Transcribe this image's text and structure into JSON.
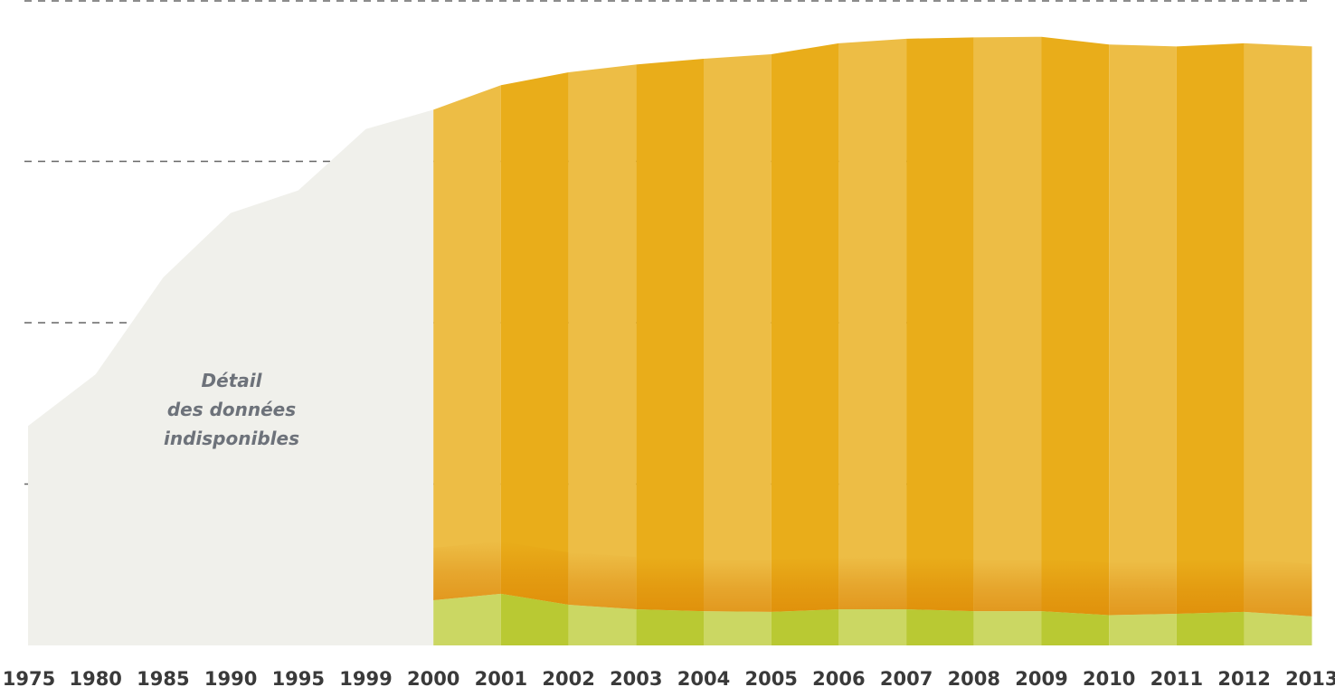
{
  "chart_data": {
    "type": "area",
    "title": "",
    "xlabel": "",
    "ylabel": "",
    "grid": true,
    "categories": [
      "1975",
      "1980",
      "1985",
      "1990",
      "1995",
      "1999",
      "2000",
      "2001",
      "2002",
      "2003",
      "2004",
      "2005",
      "2006",
      "2007",
      "2008",
      "2009",
      "2010",
      "2011",
      "2012",
      "2013"
    ],
    "ylim": [
      0,
      100
    ],
    "gridlines": [
      25,
      50,
      75,
      100
    ],
    "series": [
      {
        "kind": "total-undetailed",
        "color": "#f0f0eb",
        "values": [
          34,
          42,
          57,
          67,
          70.5,
          80,
          83,
          null,
          null,
          null,
          null,
          null,
          null,
          null,
          null,
          null,
          null,
          null,
          null,
          null
        ]
      },
      {
        "kind": "upper-band",
        "colors": [
          "#edbd45",
          "#e9ad1a"
        ],
        "values": [
          null,
          null,
          null,
          null,
          null,
          null,
          83,
          86.8,
          88.8,
          90,
          90.9,
          91.6,
          93.3,
          94,
          94.2,
          94.3,
          93.1,
          92.8,
          93.3,
          92.8
        ]
      },
      {
        "kind": "lower-band",
        "colors": [
          "#cbd763",
          "#b9c933"
        ],
        "values": [
          null,
          null,
          null,
          null,
          null,
          null,
          7,
          8,
          6.3,
          5.6,
          5.3,
          5.2,
          5.6,
          5.6,
          5.3,
          5.3,
          4.7,
          4.9,
          5.2,
          4.5
        ]
      }
    ],
    "annotations": [
      {
        "lines": [
          "Détail",
          "des données",
          "indisponibles"
        ]
      }
    ]
  }
}
